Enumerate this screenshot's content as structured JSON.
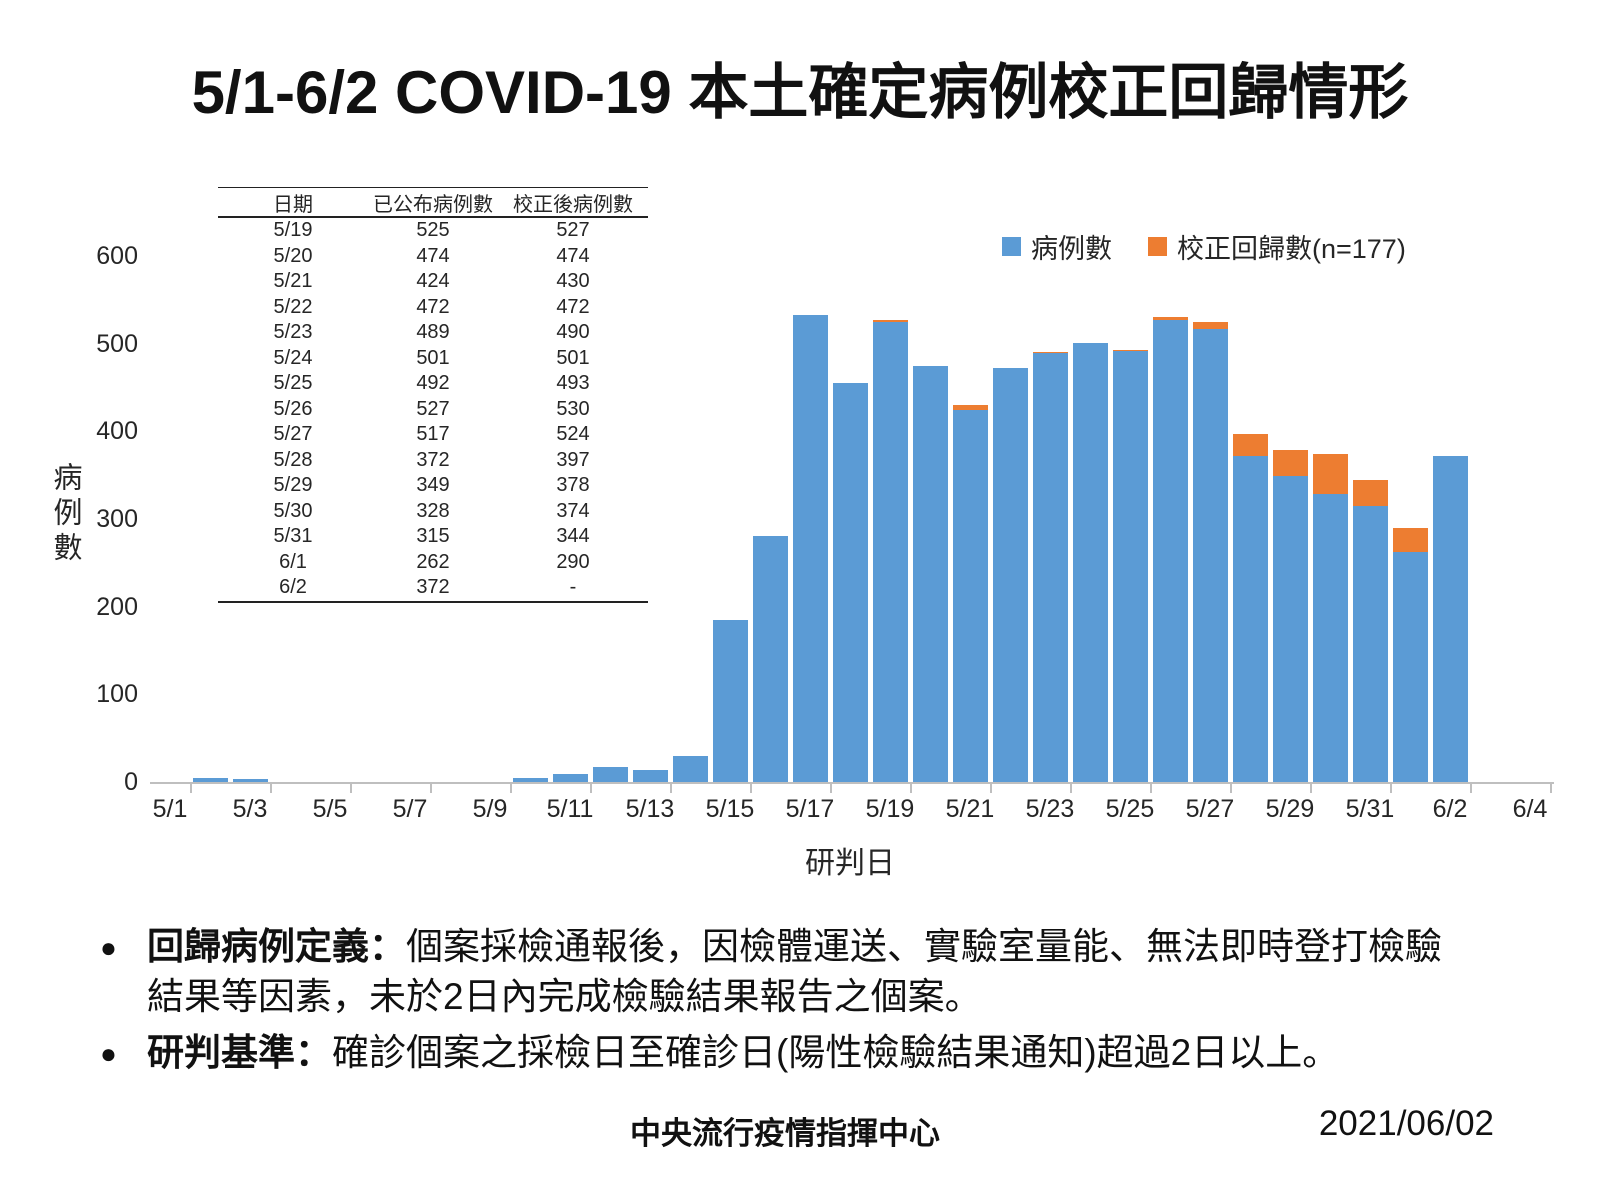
{
  "title": "5/1-6/2 COVID-19 本土確定病例校正回歸情形",
  "table": {
    "headers": [
      "日期",
      "已公布病例數",
      "校正後病例數"
    ],
    "rows": [
      [
        "5/19",
        "525",
        "527"
      ],
      [
        "5/20",
        "474",
        "474"
      ],
      [
        "5/21",
        "424",
        "430"
      ],
      [
        "5/22",
        "472",
        "472"
      ],
      [
        "5/23",
        "489",
        "490"
      ],
      [
        "5/24",
        "501",
        "501"
      ],
      [
        "5/25",
        "492",
        "493"
      ],
      [
        "5/26",
        "527",
        "530"
      ],
      [
        "5/27",
        "517",
        "524"
      ],
      [
        "5/28",
        "372",
        "397"
      ],
      [
        "5/29",
        "349",
        "378"
      ],
      [
        "5/30",
        "328",
        "374"
      ],
      [
        "5/31",
        "315",
        "344"
      ],
      [
        "6/1",
        "262",
        "290"
      ],
      [
        "6/2",
        "372",
        "-"
      ]
    ]
  },
  "chart_data": {
    "type": "bar",
    "stacked": true,
    "xlabel": "研判日",
    "ylabel": "病例數",
    "ylim": [
      0,
      600
    ],
    "yticks": [
      0,
      100,
      200,
      300,
      400,
      500,
      600
    ],
    "grid": "off",
    "legend_position": "top-right",
    "categories": [
      "5/1",
      "5/2",
      "5/3",
      "5/4",
      "5/5",
      "5/6",
      "5/7",
      "5/8",
      "5/9",
      "5/10",
      "5/11",
      "5/12",
      "5/13",
      "5/14",
      "5/15",
      "5/16",
      "5/17",
      "5/18",
      "5/19",
      "5/20",
      "5/21",
      "5/22",
      "5/23",
      "5/24",
      "5/25",
      "5/26",
      "5/27",
      "5/28",
      "5/29",
      "5/30",
      "5/31",
      "6/1",
      "6/2",
      "6/3",
      "6/4"
    ],
    "x_tick_labels": [
      "5/1",
      "5/3",
      "5/5",
      "5/7",
      "5/9",
      "5/11",
      "5/13",
      "5/15",
      "5/17",
      "5/19",
      "5/21",
      "5/23",
      "5/25",
      "5/27",
      "5/29",
      "5/31",
      "6/2",
      "6/4"
    ],
    "series": [
      {
        "name": "病例數",
        "color": "#5B9BD5",
        "values": [
          0,
          5,
          3,
          0,
          0,
          0,
          0,
          0,
          0,
          4,
          9,
          17,
          14,
          30,
          185,
          280,
          533,
          455,
          525,
          474,
          424,
          472,
          489,
          501,
          492,
          527,
          517,
          372,
          349,
          328,
          315,
          262,
          372,
          0,
          0
        ]
      },
      {
        "name": "校正回歸數(n=177)",
        "color": "#ED7D31",
        "values": [
          0,
          0,
          0,
          0,
          0,
          0,
          0,
          0,
          0,
          0,
          0,
          0,
          0,
          0,
          0,
          0,
          0,
          0,
          2,
          0,
          6,
          0,
          1,
          0,
          1,
          3,
          7,
          25,
          29,
          46,
          29,
          28,
          0,
          0,
          0
        ]
      }
    ]
  },
  "notes": {
    "bullet": "●",
    "item1": {
      "label": "回歸病例定義：",
      "line1": "個案採檢通報後，因檢體運送、實驗室量能、無法即時登打檢驗",
      "line2": "結果等因素，未於2日內完成檢驗結果報告之個案。"
    },
    "item2": {
      "label": "研判基準：",
      "text": "確診個案之採檢日至確診日(陽性檢驗結果通知)超過2日以上。"
    }
  },
  "footer": {
    "org": "中央流行疫情指揮中心",
    "date": "2021/06/02"
  }
}
